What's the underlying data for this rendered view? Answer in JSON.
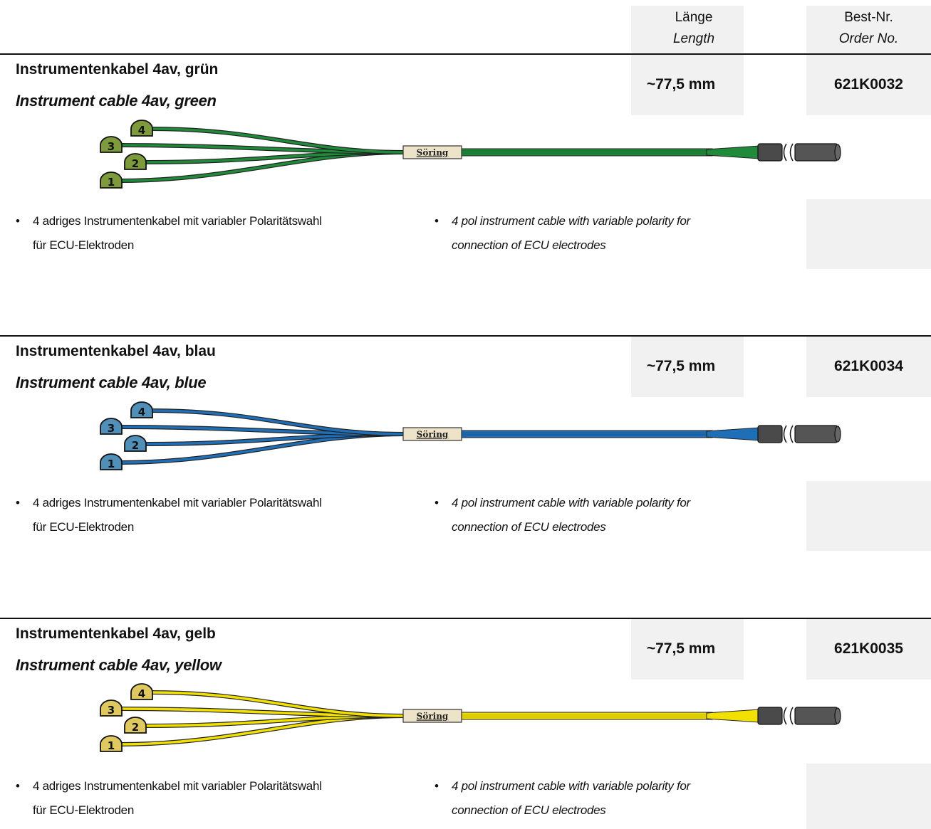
{
  "header": {
    "length_de": "Länge",
    "length_en": "Length",
    "order_de": "Best-Nr.",
    "order_en": "Order No."
  },
  "products": [
    {
      "title_de": "Instrumentenkabel 4av, grün",
      "title_en": "Instrument cable 4av, green",
      "length": "~77,5 mm",
      "order_no": "621K0032",
      "cable_color": "#1f8a3a",
      "tip_color": "#7d9a3c",
      "brand": "Söring",
      "connector_labels": [
        "1",
        "2",
        "3",
        "4"
      ],
      "bullet_de_line1": "4 adriges Instrumentenkabel mit variabler Polaritätswahl",
      "bullet_de_line2": "für ECU-Elektroden",
      "bullet_en_line1": "4 pol instrument cable with variable polarity for",
      "bullet_en_line2": "connection of ECU electrodes"
    },
    {
      "title_de": "Instrumentenkabel 4av, blau",
      "title_en": "Instrument cable 4av, blue",
      "length": "~77,5 mm",
      "order_no": "621K0034",
      "cable_color": "#1f6fb8",
      "tip_color": "#4f8fb8",
      "brand": "Söring",
      "connector_labels": [
        "1",
        "2",
        "3",
        "4"
      ],
      "bullet_de_line1": "4 adriges Instrumentenkabel mit variabler Polaritätswahl",
      "bullet_de_line2": "für ECU-Elektroden",
      "bullet_en_line1": "4 pol instrument cable with variable polarity for",
      "bullet_en_line2": "connection of ECU electrodes"
    },
    {
      "title_de": "Instrumentenkabel 4av, gelb",
      "title_en": "Instrument cable 4av, yellow",
      "length": "~77,5 mm",
      "order_no": "621K0035",
      "cable_color": "#f2e000",
      "tip_color": "#e0c860",
      "brand": "Söring",
      "connector_labels": [
        "1",
        "2",
        "3",
        "4"
      ],
      "bullet_de_line1": "4 adriges Instrumentenkabel mit variabler Polaritätswahl",
      "bullet_de_line2": "für ECU-Elektroden",
      "bullet_en_line1": "4 pol instrument cable with variable polarity for",
      "bullet_en_line2": "connection of ECU electrodes"
    }
  ]
}
